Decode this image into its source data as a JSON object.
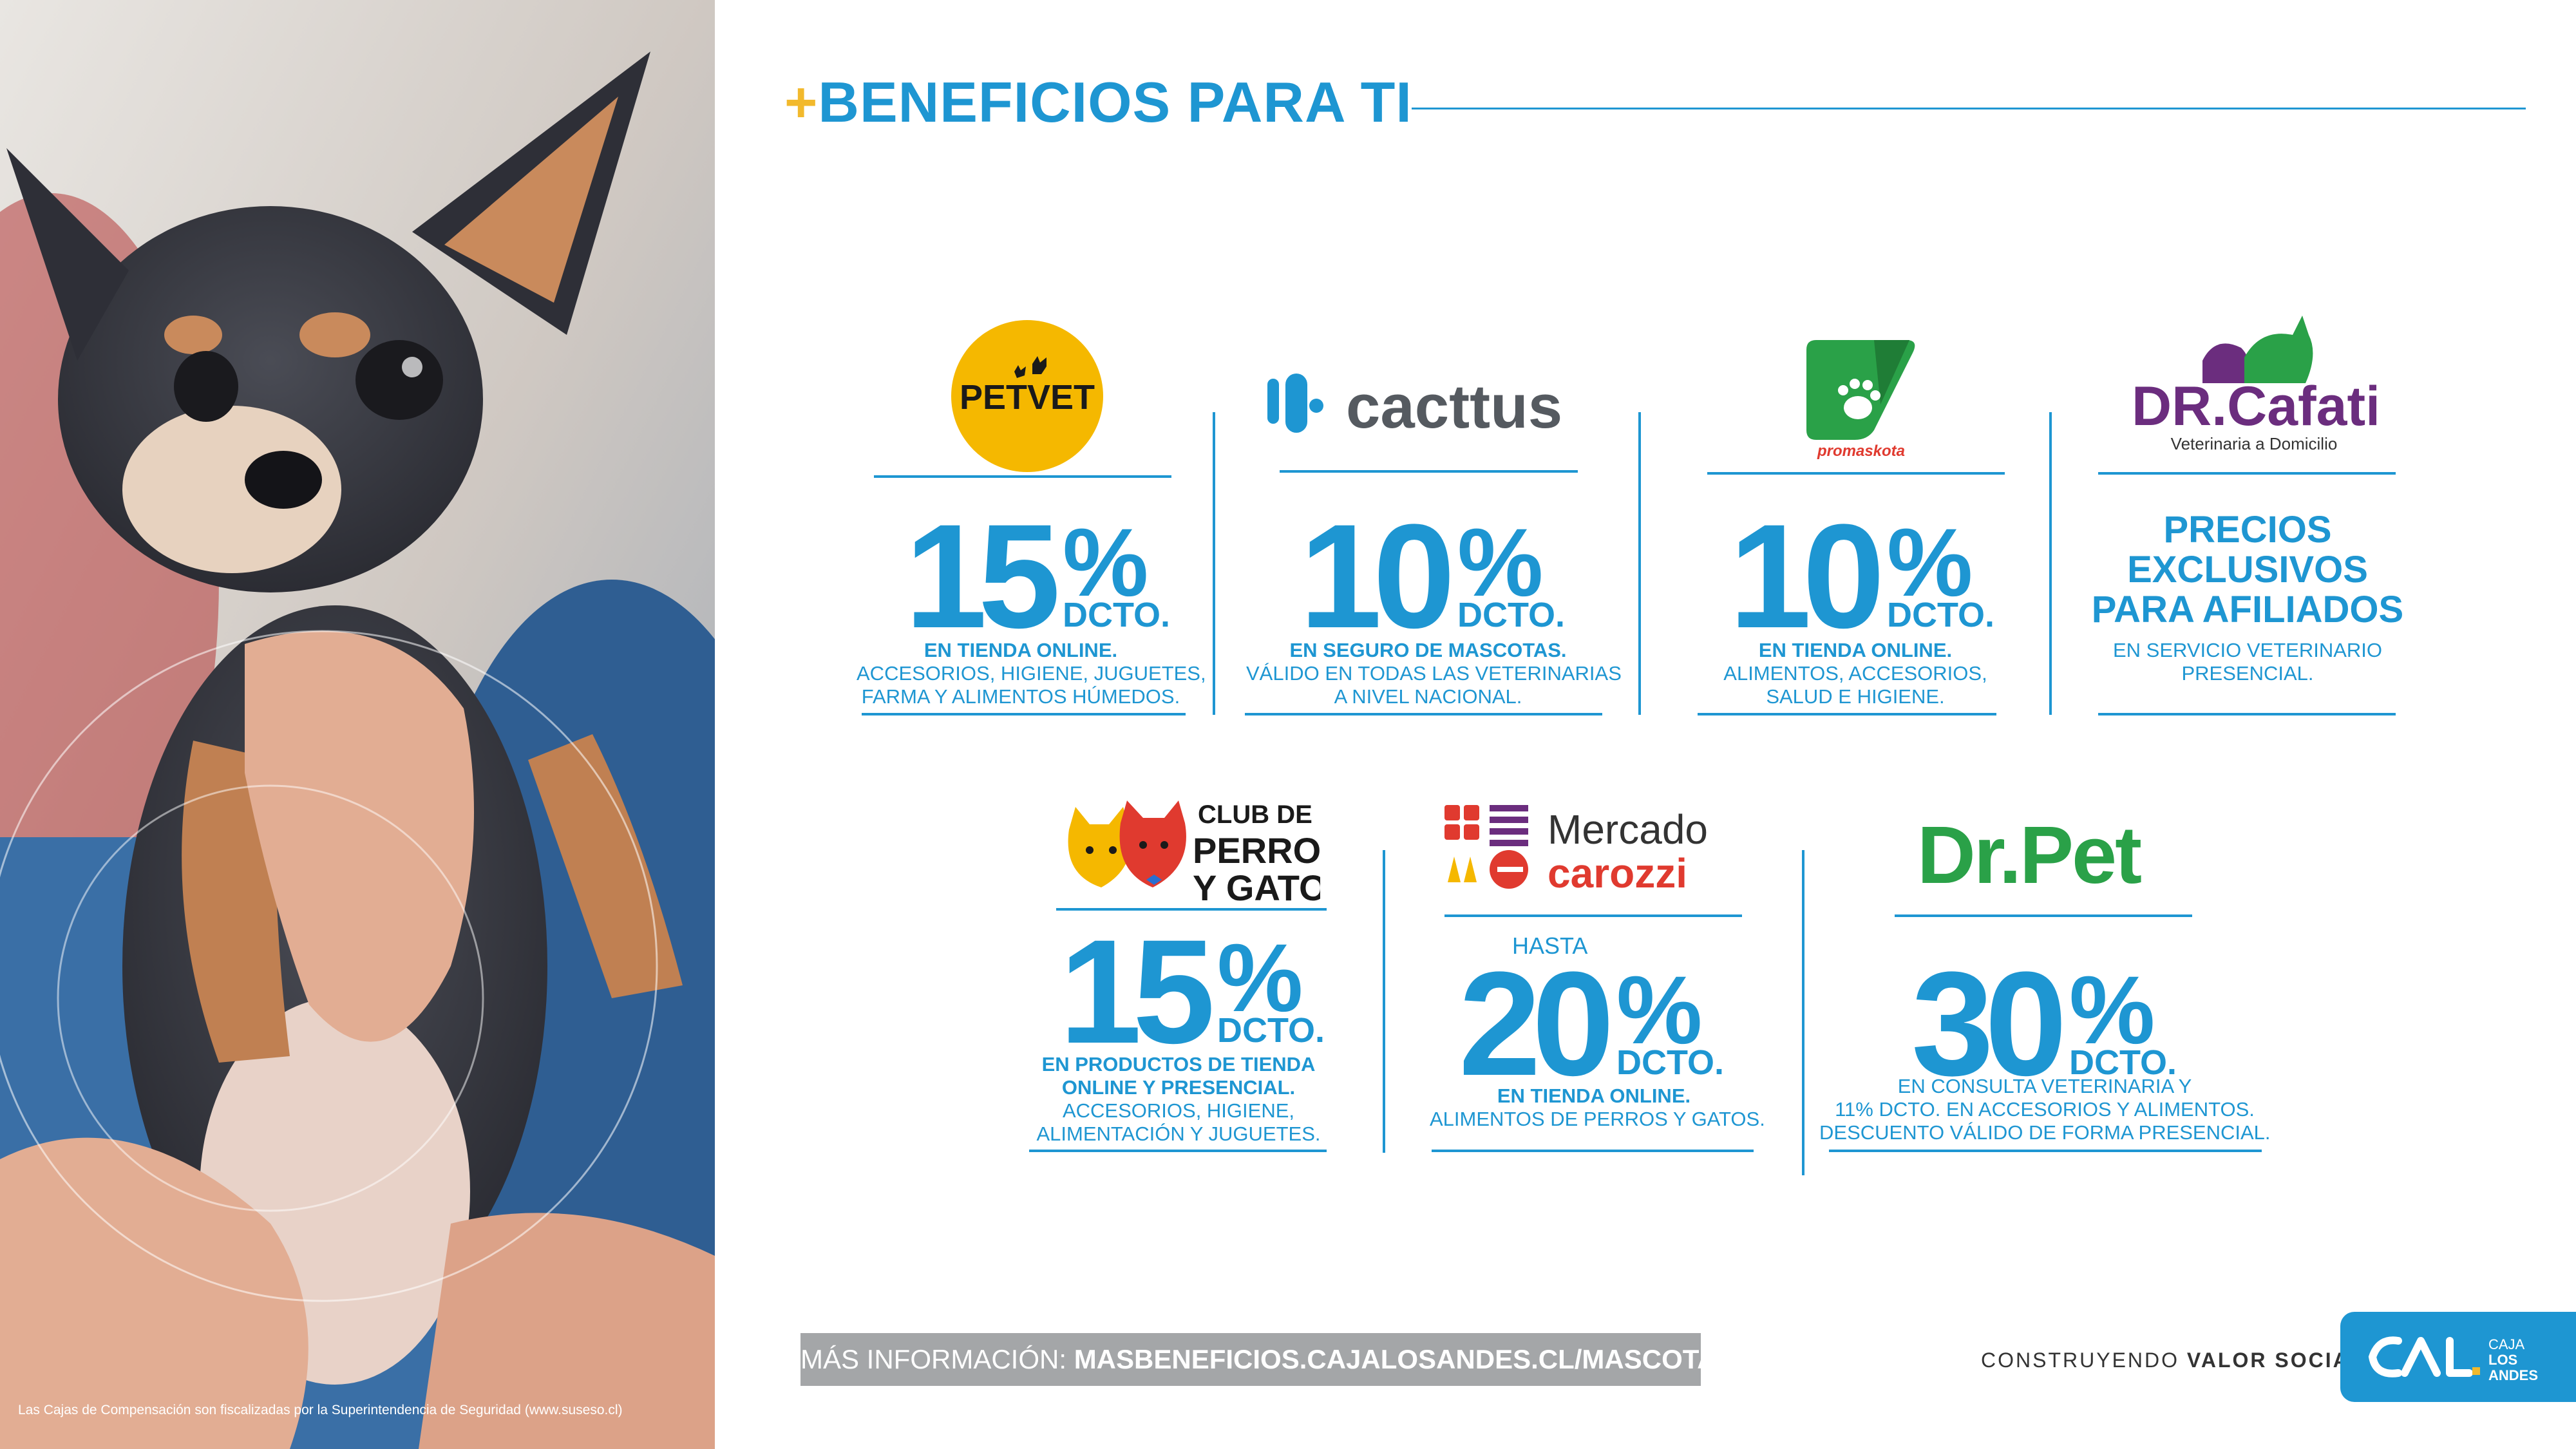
{
  "header": {
    "plus": "+",
    "title": "BENEFICIOS PARA TI"
  },
  "photo": {
    "footnote": "Las Cajas de Compensación son fiscalizadas por la Superintendencia de Seguridad (www.suseso.cl)"
  },
  "benefits": [
    {
      "brand": "PETVET",
      "percent": "15",
      "sign": "%",
      "unit": "DCTO.",
      "lines": [
        "EN TIENDA ONLINE.",
        "ACCESORIOS, HIGIENE, JUGUETES,",
        "FARMA Y ALIMENTOS HÚMEDOS."
      ]
    },
    {
      "brand": "cacttus",
      "percent": "10",
      "sign": "%",
      "unit": "DCTO.",
      "lines": [
        "EN SEGURO DE MASCOTAS.",
        "VÁLIDO EN TODAS LAS VETERINARIAS",
        "A NIVEL NACIONAL."
      ]
    },
    {
      "brand": "promaskota",
      "percent": "10",
      "sign": "%",
      "unit": "DCTO.",
      "lines": [
        "EN TIENDA ONLINE.",
        "ALIMENTOS, ACCESORIOS,",
        "SALUD E HIGIENE."
      ]
    },
    {
      "brand": "DR.Cafati",
      "brand_sub": "Veterinaria a Domicilio",
      "headline_lines": [
        "PRECIOS",
        "EXCLUSIVOS",
        "PARA AFILIADOS"
      ],
      "lines": [
        "EN SERVICIO VETERINARIO",
        "PRESENCIAL."
      ]
    },
    {
      "brand": "CLUB DE PERROS Y GATOS",
      "brand_lines": [
        "CLUB DE",
        "PERROS",
        "Y GATOS"
      ],
      "percent": "15",
      "sign": "%",
      "unit": "DCTO.",
      "lines": [
        "EN PRODUCTOS DE TIENDA",
        "ONLINE Y PRESENCIAL.",
        "ACCESORIOS, HIGIENE,",
        "ALIMENTACIÓN Y JUGUETES."
      ]
    },
    {
      "brand": "Mercado carozzi",
      "brand_lines": [
        "Mercado",
        "carozzi"
      ],
      "prefix": "HASTA",
      "percent": "20",
      "sign": "%",
      "unit": "DCTO.",
      "lines": [
        "EN TIENDA ONLINE.",
        "ALIMENTOS DE PERROS Y GATOS."
      ]
    },
    {
      "brand": "Dr.Pet",
      "percent": "30",
      "sign": "%",
      "unit": "DCTO.",
      "lines": [
        "EN CONSULTA VETERINARIA Y",
        "11% DCTO. EN ACCESORIOS Y ALIMENTOS.",
        "DESCUENTO VÁLIDO DE FORMA PRESENCIAL."
      ]
    }
  ],
  "footer": {
    "more_label": "MÁS INFORMACIÓN:",
    "more_url": "MASBENEFICIOS.CAJALOSANDES.CL/MASCOTAS",
    "slogan_pre": "CONSTRUYENDO",
    "slogan_bold": "VALOR SOCIAL",
    "slogan_dot": ".",
    "logo_lines": [
      "CAJA",
      "LOS",
      "ANDES"
    ]
  },
  "colors": {
    "brand_blue": "#1e96d2",
    "accent_yellow": "#f2b92c",
    "petvet_yellow": "#f5b800",
    "green": "#2aa148",
    "purple": "#6b2d7e",
    "red": "#e03a2f",
    "grey_bar": "#a4a6a8"
  }
}
